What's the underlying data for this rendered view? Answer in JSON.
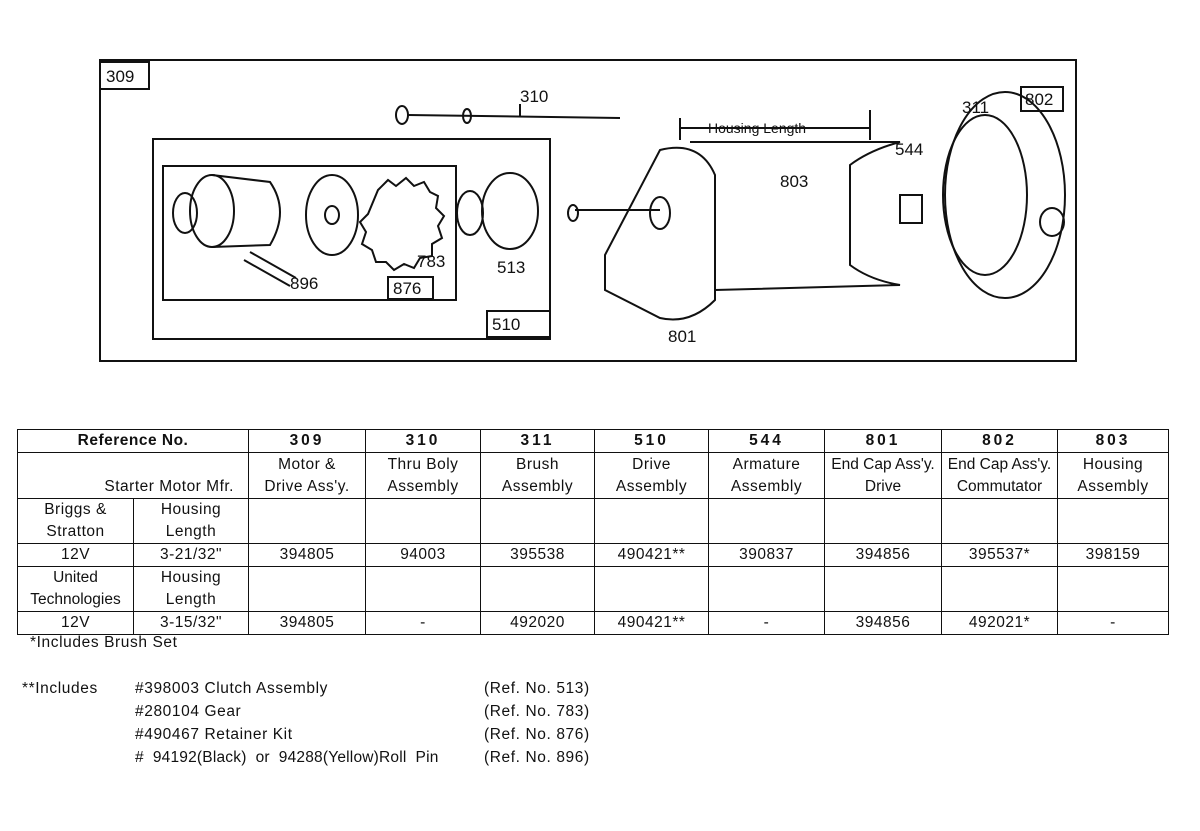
{
  "diagram": {
    "callouts": {
      "r309": "309",
      "r310": "310",
      "r311": "311",
      "r802": "802",
      "r803": "803",
      "r544": "544",
      "r896": "896",
      "r783": "783",
      "r876": "876",
      "r513": "513",
      "r510": "510",
      "r801": "801"
    },
    "housing_length_label": "Housing Length"
  },
  "table": {
    "ref_header": "Reference No.",
    "mfr_header": "Starter Motor Mfr.",
    "columns": [
      {
        "ref": "309",
        "name1": "Motor &",
        "name2": "Drive Ass'y."
      },
      {
        "ref": "310",
        "name1": "Thru Boly",
        "name2": "Assembly"
      },
      {
        "ref": "311",
        "name1": "Brush",
        "name2": "Assembly"
      },
      {
        "ref": "510",
        "name1": "Drive",
        "name2": "Assembly"
      },
      {
        "ref": "544",
        "name1": "Armature",
        "name2": "Assembly"
      },
      {
        "ref": "801",
        "name1": "End Cap Ass'y.",
        "name2": "Drive"
      },
      {
        "ref": "802",
        "name1": "End Cap Ass'y.",
        "name2": "Commutator"
      },
      {
        "ref": "803",
        "name1": "Housing",
        "name2": "Assembly"
      }
    ],
    "manufacturers": [
      {
        "name1": "Briggs &",
        "name2": "Stratton",
        "len1": "Housing",
        "len2": "Length",
        "voltage": "12V",
        "length": "3-21/32\"",
        "parts": [
          "394805",
          "94003",
          "395538",
          "490421**",
          "390837",
          "394856",
          "395537*",
          "398159"
        ]
      },
      {
        "name1": "United",
        "name2": "Technologies",
        "len1": "Housing",
        "len2": "Length",
        "voltage": "12V",
        "length": "3-15/32\"",
        "parts": [
          "394805",
          "-",
          "492020",
          "490421**",
          "-",
          "394856",
          "492021*",
          "-"
        ]
      }
    ]
  },
  "notes": {
    "single": "*Includes Brush Set",
    "double_label": "**Includes",
    "items": [
      {
        "part": "#398003  Clutch  Assembly",
        "ref": "(Ref. No. 513)"
      },
      {
        "part": "#280104  Gear",
        "ref": "(Ref. No. 783)"
      },
      {
        "part": "#490467  Retainer  Kit",
        "ref": "(Ref. No. 876)"
      },
      {
        "part": "#  94192(Black)  or  94288(Yellow)Roll  Pin",
        "ref": "(Ref. No. 896)"
      }
    ]
  }
}
